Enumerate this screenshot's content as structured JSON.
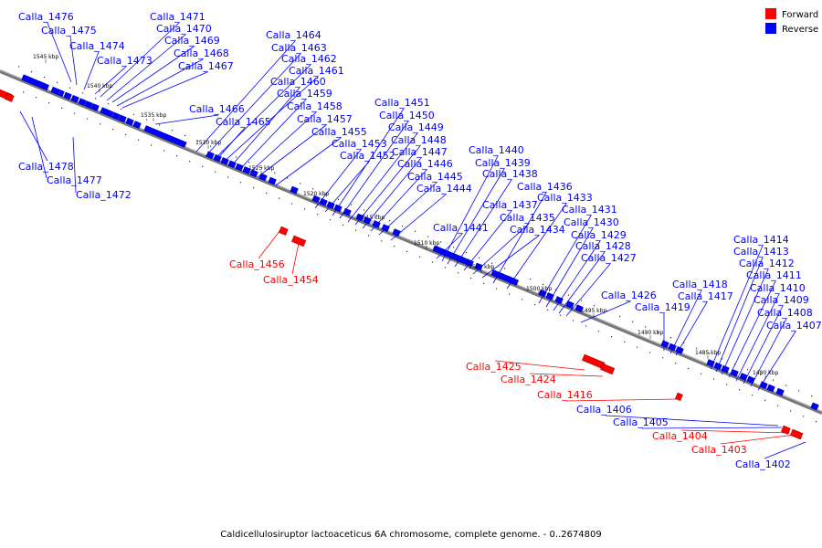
{
  "legend": {
    "forward": {
      "label": "Forward",
      "color": "#ff0000"
    },
    "reverse": {
      "label": "Reverse",
      "color": "#0000ff"
    }
  },
  "caption": "Caldicellulosiruptor lactoaceticus 6A chromosome, complete genome. - 0..2674809",
  "ticks": [
    "1545 kbp",
    "1540 kbp",
    "1535 kbp",
    "1530 kbp",
    "1525 kbp",
    "1520 kbp",
    "1515 kbp",
    "1510 kbp",
    "1505 kbp",
    "1500 kbp",
    "1495 kbp",
    "1490 kbp",
    "1485 kbp",
    "1480 kbp"
  ],
  "labels": [
    "Calla_1476",
    "Calla_1475",
    "Calla_1474",
    "Calla_1473",
    "Calla_1471",
    "Calla_1470",
    "Calla_1469",
    "Calla_1468",
    "Calla_1467",
    "Calla_1466",
    "Calla_1464",
    "Calla_1463",
    "Calla_1462",
    "Calla_1461",
    "Calla_1460",
    "Calla_1459",
    "Calla_1458",
    "Calla_1457",
    "Calla_1465",
    "Calla_1455",
    "Calla_1453",
    "Calla_1452",
    "Calla_1451",
    "Calla_1450",
    "Calla_1449",
    "Calla_1448",
    "Calla_1447",
    "Calla_1446",
    "Calla_1445",
    "Calla_1444",
    "Calla_1441",
    "Calla_1440",
    "Calla_1439",
    "Calla_1438",
    "Calla_1436",
    "Calla_1437",
    "Calla_1435",
    "Calla_1434",
    "Calla_1433",
    "Calla_1431",
    "Calla_1430",
    "Calla_1429",
    "Calla_1428",
    "Calla_1427",
    "Calla_1426",
    "Calla_1419",
    "Calla_1418",
    "Calla_1417",
    "Calla_1414",
    "Calla_1413",
    "Calla_1412",
    "Calla_1411",
    "Calla_1410",
    "Calla_1409",
    "Calla_1408",
    "Calla_1407",
    "Calla_1478",
    "Calla_1477",
    "Calla_1472",
    "Calla_1456",
    "Calla_1454",
    "Calla_1425",
    "Calla_1424",
    "Calla_1416",
    "Calla_1406",
    "Calla_1405",
    "Calla_1404",
    "Calla_1403",
    "Calla_1402"
  ]
}
